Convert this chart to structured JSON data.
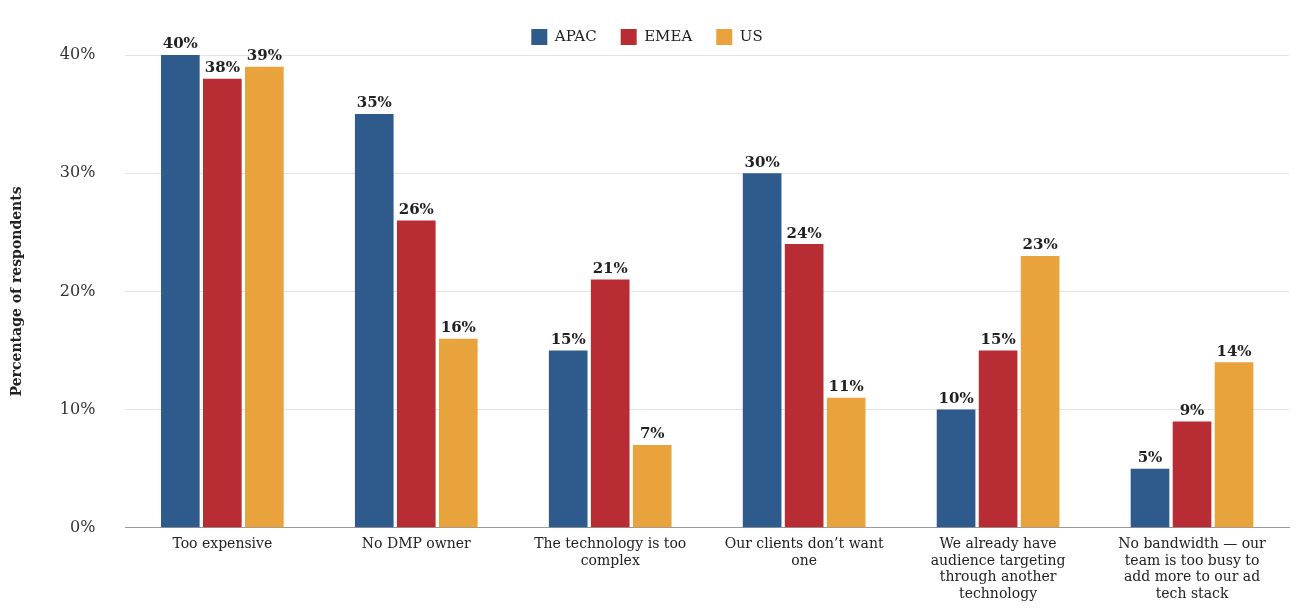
{
  "chart_data": {
    "type": "bar",
    "ylabel": "Percentage of respondents",
    "categories": [
      "Too expensive",
      "No DMP owner",
      "The technology is too complex",
      "Our clients don’t want one",
      "We already have audience targeting through another technology",
      "No bandwidth — our team is too busy to add more to our ad tech stack"
    ],
    "series": [
      {
        "name": "APAC",
        "color": "#2e5a8c",
        "values": [
          40,
          35,
          15,
          30,
          10,
          5
        ],
        "value_labels": [
          "40%",
          "35%",
          "15%",
          "30%",
          "10%",
          "5%"
        ]
      },
      {
        "name": "EMEA",
        "color": "#b82d33",
        "values": [
          38,
          26,
          21,
          24,
          15,
          9
        ],
        "value_labels": [
          "38%",
          "26%",
          "21%",
          "24%",
          "15%",
          "9%"
        ]
      },
      {
        "name": "US",
        "color": "#e8a33d",
        "values": [
          39,
          16,
          7,
          11,
          23,
          14
        ],
        "value_labels": [
          "39%",
          "16%",
          "7%",
          "11%",
          "23%",
          "14%"
        ]
      }
    ],
    "ylim": [
      0,
      40
    ],
    "yticks": [
      {
        "value": 0,
        "label": "0%"
      },
      {
        "value": 10,
        "label": "10%"
      },
      {
        "value": 20,
        "label": "20%"
      },
      {
        "value": 30,
        "label": "30%"
      },
      {
        "value": 40,
        "label": "40%"
      }
    ],
    "grid": "y",
    "legend": "top"
  }
}
